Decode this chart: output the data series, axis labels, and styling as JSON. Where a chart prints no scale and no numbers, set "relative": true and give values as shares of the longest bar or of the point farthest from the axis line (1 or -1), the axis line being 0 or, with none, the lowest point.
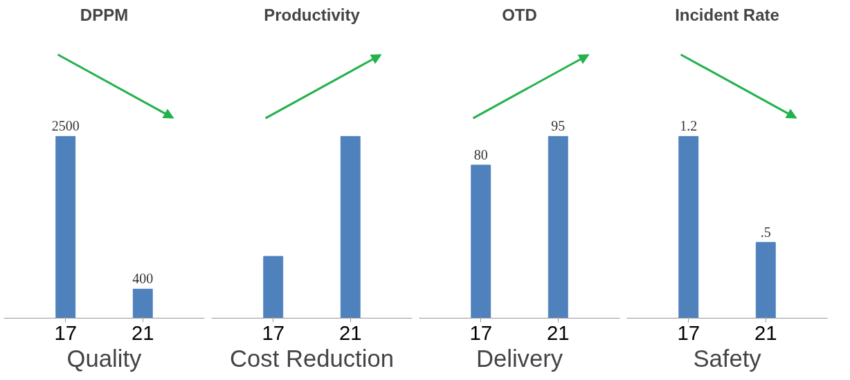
{
  "chart_data": [
    {
      "type": "bar",
      "title": "DPPM",
      "xlabel": "Quality",
      "categories": [
        "17",
        "21"
      ],
      "values": [
        2500,
        400
      ],
      "color": "#4f81bd",
      "data_labels": true,
      "grid": false
    },
    {
      "type": "bar",
      "title": "Productivity",
      "xlabel": "Cost Reduction",
      "categories": [
        "17",
        "21"
      ],
      "values": [
        0.34,
        1
      ],
      "color": "#4f81bd",
      "relative": true,
      "grid": false
    },
    {
      "type": "bar",
      "title": "OTD",
      "xlabel": "Delivery",
      "categories": [
        "17",
        "21"
      ],
      "values": [
        80,
        95
      ],
      "color": "#4f81bd",
      "data_labels": true,
      "grid": false
    },
    {
      "type": "bar",
      "title": "Incident Rate",
      "xlabel": "Safety",
      "categories": [
        "17",
        "21"
      ],
      "values": [
        1.2,
        0.5
      ],
      "value_labels": [
        "1.2",
        ".5"
      ],
      "color": "#4f81bd",
      "grid": false
    }
  ]
}
